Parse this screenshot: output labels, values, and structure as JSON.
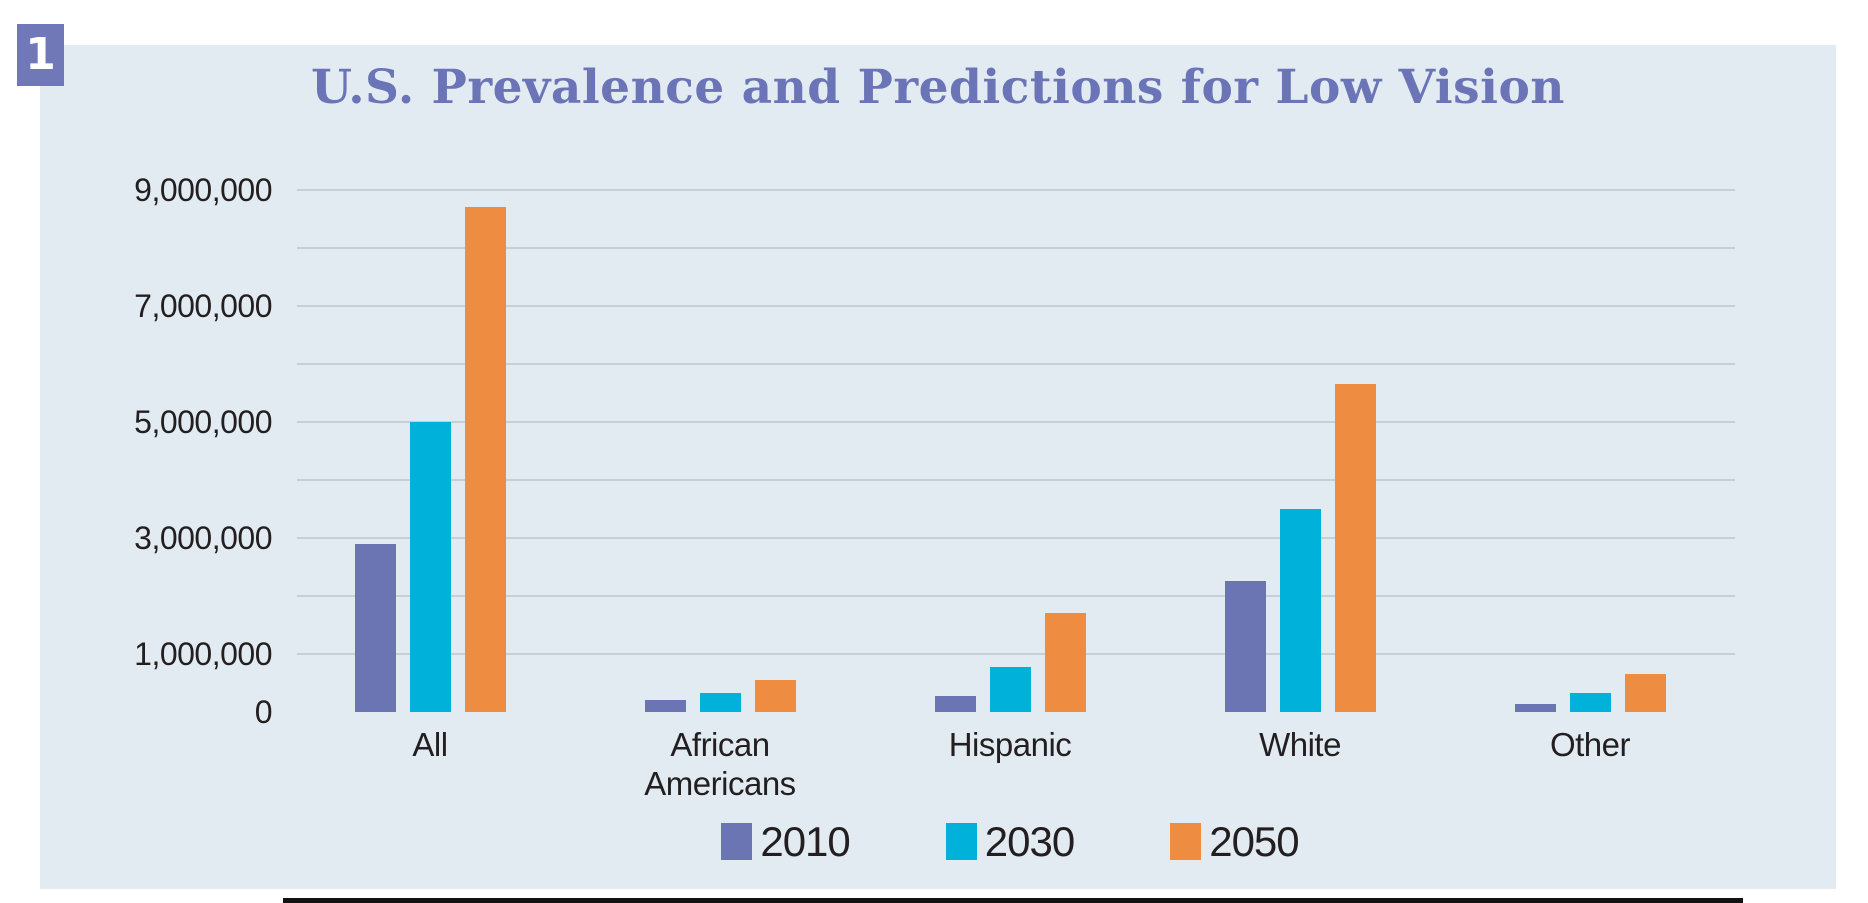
{
  "figure_number": "1",
  "title": "U.S. Prevalence and Predictions for Low Vision",
  "colors": {
    "panel_bg": "#e2ebf1",
    "title_text": "#6a74b6",
    "badge_bg": "#7178b7",
    "gridline": "#c7ced4",
    "axis": "#121212",
    "text": "#231f20",
    "series_2010": "#6b75b4",
    "series_2030": "#00b1d9",
    "series_2050": "#ee8c42"
  },
  "chart_data": {
    "type": "bar",
    "title": "U.S. Prevalence and Predictions for Low Vision",
    "categories": [
      "All",
      "African Americans",
      "Hispanic",
      "White",
      "Other"
    ],
    "series": [
      {
        "name": "2010",
        "color": "#6b75b4",
        "values": [
          2900000,
          200000,
          280000,
          2250000,
          140000
        ]
      },
      {
        "name": "2030",
        "color": "#00b1d9",
        "values": [
          5000000,
          320000,
          770000,
          3500000,
          330000
        ]
      },
      {
        "name": "2050",
        "color": "#ee8c42",
        "values": [
          8700000,
          550000,
          1700000,
          5650000,
          650000
        ]
      }
    ],
    "ylim": [
      0,
      9000000
    ],
    "yticks": [
      {
        "value": 9000000,
        "label": "9,000,000"
      },
      {
        "value": 7000000,
        "label": "7,000,000"
      },
      {
        "value": 5000000,
        "label": "5,000,000"
      },
      {
        "value": 3000000,
        "label": "3,000,000"
      },
      {
        "value": 1000000,
        "label": "1,000,000"
      },
      {
        "value": 0,
        "label": "0"
      }
    ],
    "gridline_interval": 1000000,
    "grid": true,
    "legend_position": "bottom",
    "xlabel": "",
    "ylabel": ""
  }
}
